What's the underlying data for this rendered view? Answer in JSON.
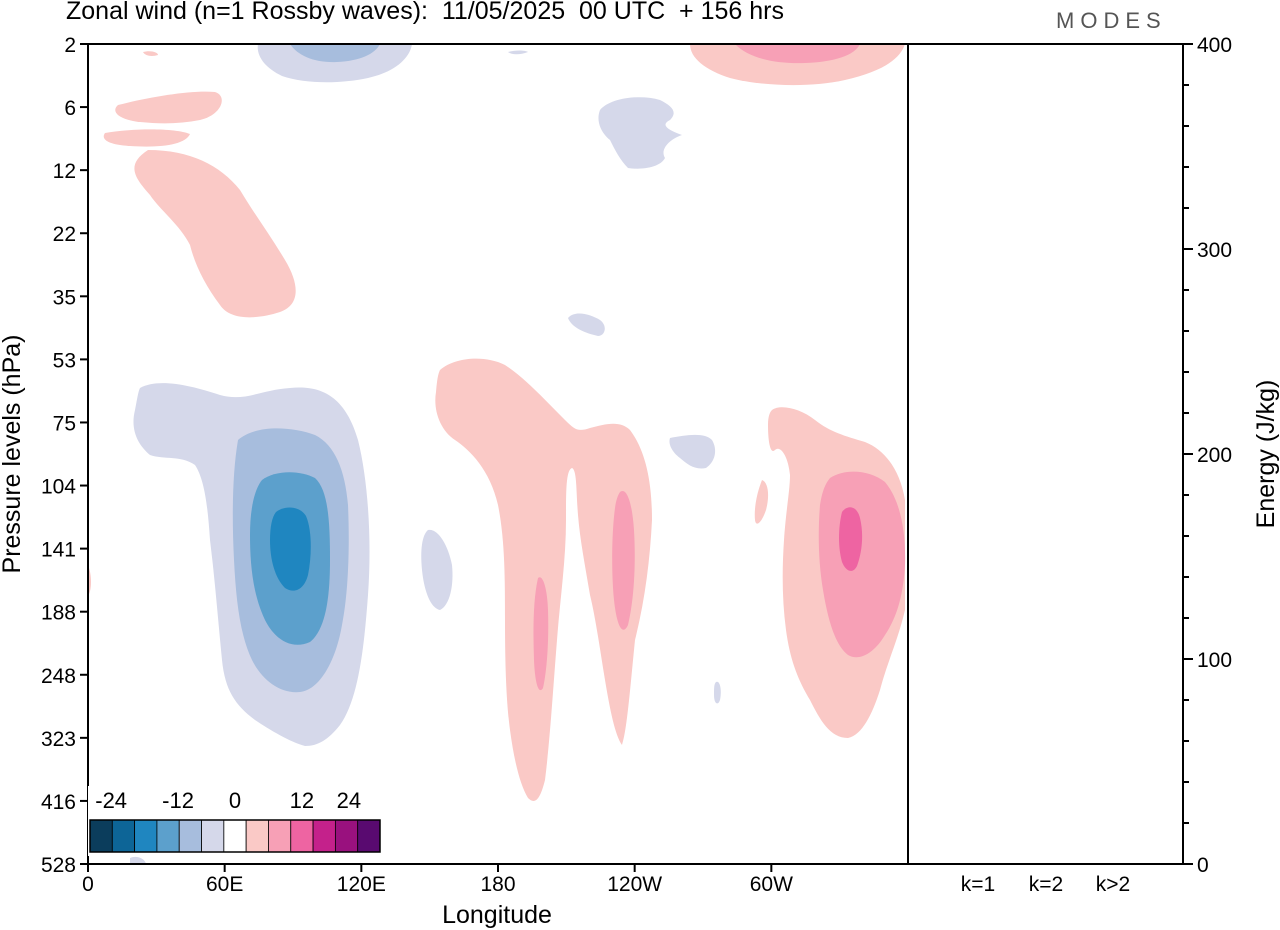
{
  "chart_data": {
    "type": "contour_with_bar",
    "title": "Zonal wind (n=1 Rossby waves):  11/05/2025  00 UTC  + 156 hrs",
    "brand": "MODES",
    "xlabel": "Longitude",
    "ylabel": "Pressure levels (hPa)",
    "y2label": "Energy (J/kg)",
    "x_ticks": [
      "0",
      "60E",
      "120E",
      "180",
      "120W",
      "60W"
    ],
    "y_ticks": [
      "2",
      "6",
      "12",
      "22",
      "35",
      "53",
      "75",
      "104",
      "141",
      "188",
      "248",
      "323",
      "416",
      "528"
    ],
    "y2_ticks": [
      0,
      100,
      200,
      300,
      400
    ],
    "y2_range": [
      0,
      400
    ],
    "bar_categories": [
      "k=1",
      "k=2",
      "k>2"
    ],
    "bar_values": [
      0,
      0,
      0
    ],
    "colorbar_ticks": [
      "-24",
      "-12",
      "0",
      "12",
      "24"
    ],
    "colorbar_colors": [
      "#0b3d5c",
      "#0d6597",
      "#1f86c0",
      "#5ca0cc",
      "#a7bddd",
      "#d5d8ea",
      "#ffffff",
      "#fac9c6",
      "#f7a0b6",
      "#ee64a2",
      "#c4218b",
      "#99117e",
      "#590a70"
    ]
  }
}
